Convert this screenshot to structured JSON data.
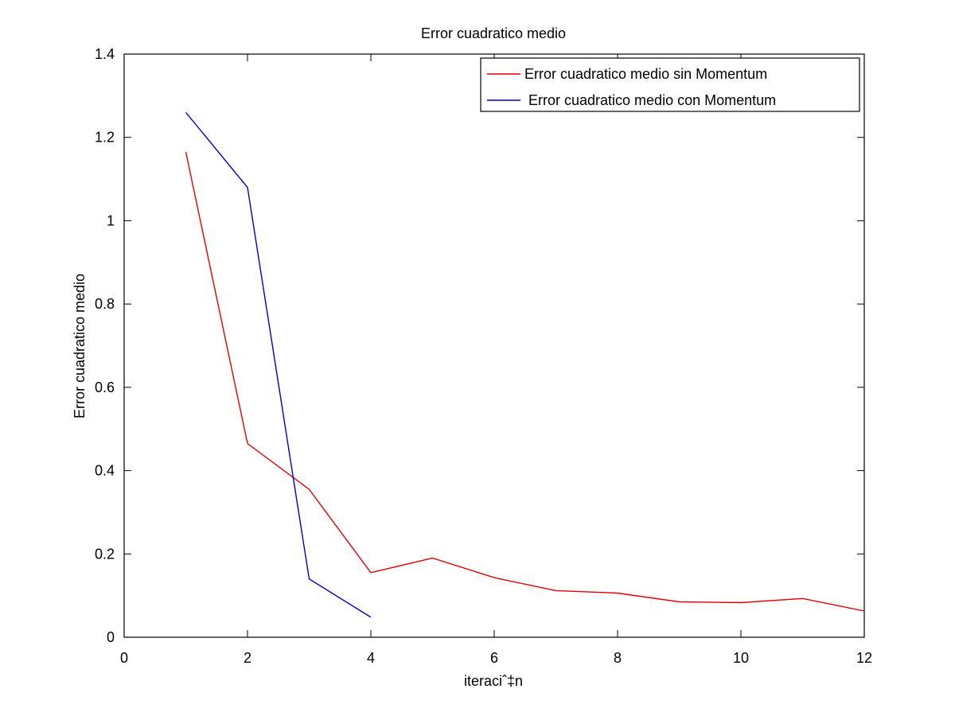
{
  "chart_data": {
    "type": "line",
    "title": "Error cuadratico medio",
    "xlabel": "iteraciˆ‡n",
    "ylabel": "Error cuadratico medio",
    "xlim": [
      0,
      12
    ],
    "ylim": [
      0,
      1.4
    ],
    "xticks": [
      0,
      2,
      4,
      6,
      8,
      10,
      12
    ],
    "yticks": [
      0,
      0.2,
      0.4,
      0.6,
      0.8,
      1,
      1.2,
      1.4
    ],
    "xtick_labels": [
      "0",
      "2",
      "4",
      "6",
      "8",
      "10",
      "12"
    ],
    "ytick_labels": [
      "0",
      "0.2",
      "0.4",
      "0.6",
      "0.8",
      "1",
      "1.2",
      "1.4"
    ],
    "grid": false,
    "legend_position": "top-right",
    "series": [
      {
        "name": "Error cuadratico medio sin Momentum",
        "color": "#e60000",
        "x": [
          1,
          2,
          3,
          4,
          5,
          6,
          7,
          8,
          9,
          10,
          11,
          12
        ],
        "y": [
          1.165,
          0.465,
          0.355,
          0.155,
          0.19,
          0.143,
          0.112,
          0.106,
          0.085,
          0.083,
          0.093,
          0.063
        ]
      },
      {
        "name": " Error cuadratico medio con Momentum",
        "color": "#0000cc",
        "x": [
          1,
          2,
          3,
          4
        ],
        "y": [
          1.26,
          1.08,
          0.14,
          0.048
        ]
      }
    ]
  }
}
